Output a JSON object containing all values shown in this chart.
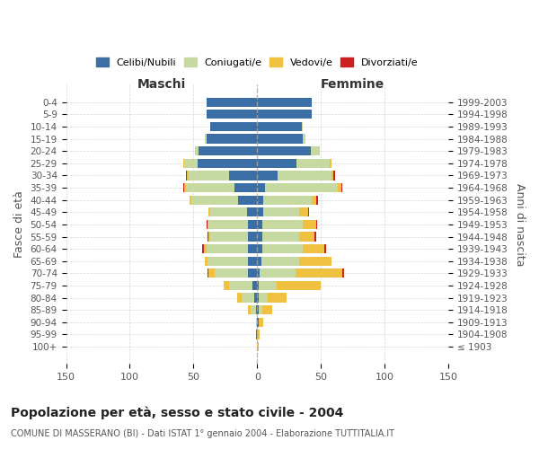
{
  "age_groups": [
    "100+",
    "95-99",
    "90-94",
    "85-89",
    "80-84",
    "75-79",
    "70-74",
    "65-69",
    "60-64",
    "55-59",
    "50-54",
    "45-49",
    "40-44",
    "35-39",
    "30-34",
    "25-29",
    "20-24",
    "15-19",
    "10-14",
    "5-9",
    "0-4"
  ],
  "birth_years": [
    "≤ 1903",
    "1904-1908",
    "1909-1913",
    "1914-1918",
    "1919-1923",
    "1924-1928",
    "1929-1933",
    "1934-1938",
    "1939-1943",
    "1944-1948",
    "1949-1953",
    "1954-1958",
    "1959-1963",
    "1964-1968",
    "1969-1973",
    "1974-1978",
    "1979-1983",
    "1984-1988",
    "1989-1993",
    "1994-1998",
    "1999-2003"
  ],
  "males": {
    "celibe": [
      0,
      1,
      0,
      1,
      2,
      4,
      7,
      7,
      7,
      7,
      7,
      8,
      15,
      18,
      22,
      47,
      46,
      40,
      37,
      40,
      40
    ],
    "coniugato": [
      0,
      0,
      1,
      4,
      10,
      18,
      26,
      32,
      33,
      30,
      31,
      29,
      37,
      38,
      32,
      10,
      3,
      1,
      0,
      0,
      0
    ],
    "vedovo": [
      0,
      0,
      0,
      2,
      4,
      4,
      5,
      2,
      2,
      1,
      1,
      1,
      1,
      1,
      1,
      1,
      0,
      0,
      0,
      0,
      0
    ],
    "divorziato": [
      0,
      0,
      0,
      0,
      0,
      0,
      1,
      0,
      1,
      1,
      1,
      0,
      0,
      1,
      1,
      0,
      0,
      0,
      0,
      0,
      0
    ]
  },
  "females": {
    "nubile": [
      0,
      0,
      1,
      1,
      1,
      1,
      2,
      3,
      4,
      4,
      4,
      5,
      5,
      6,
      16,
      31,
      42,
      36,
      35,
      43,
      43
    ],
    "coniugata": [
      0,
      0,
      0,
      3,
      7,
      14,
      28,
      30,
      32,
      29,
      32,
      28,
      38,
      57,
      42,
      26,
      7,
      2,
      1,
      0,
      0
    ],
    "vedova": [
      1,
      2,
      4,
      8,
      15,
      35,
      37,
      25,
      17,
      12,
      10,
      7,
      3,
      3,
      2,
      1,
      0,
      0,
      0,
      0,
      0
    ],
    "divorziata": [
      0,
      0,
      0,
      0,
      0,
      0,
      1,
      0,
      1,
      1,
      1,
      1,
      2,
      1,
      1,
      0,
      0,
      0,
      0,
      0,
      0
    ]
  },
  "color_celibe": "#3a6ea5",
  "color_coniugato": "#c5d9a0",
  "color_vedovo": "#f0c040",
  "color_divorziato": "#cc2020",
  "legend_labels": [
    "Celibi/Nubili",
    "Coniugati/e",
    "Vedovi/e",
    "Divorziati/e"
  ],
  "title": "Popolazione per età, sesso e stato civile - 2004",
  "subtitle": "COMUNE DI MASSERANO (BI) - Dati ISTAT 1° gennaio 2004 - Elaborazione TUTTITALIA.IT",
  "label_maschi": "Maschi",
  "label_femmine": "Femmine",
  "ylabel_left": "Fasce di età",
  "ylabel_right": "Anni di nascita",
  "xlim": 150,
  "xticks": [
    -150,
    -100,
    -50,
    0,
    50,
    100,
    150
  ],
  "bg_color": "#ffffff",
  "grid_color": "#cccccc"
}
